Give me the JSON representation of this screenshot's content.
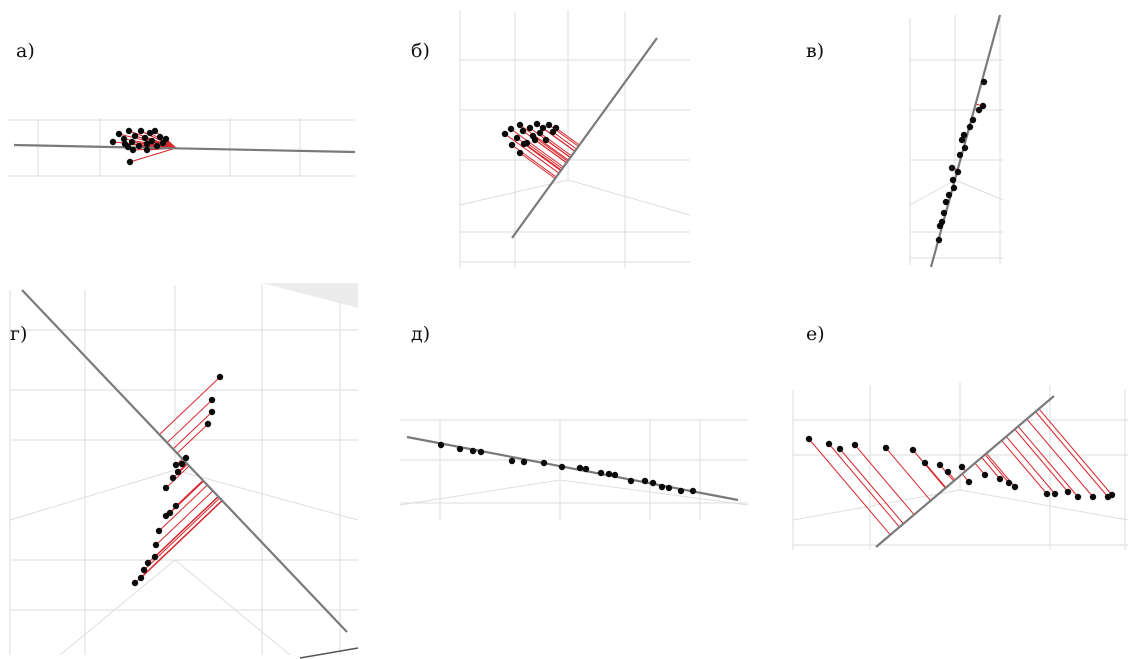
{
  "panels": [
    {
      "id": "a",
      "label": "а)"
    },
    {
      "id": "b",
      "label": "б)"
    },
    {
      "id": "v",
      "label": "в)"
    },
    {
      "id": "g",
      "label": "г)"
    },
    {
      "id": "d",
      "label": "д)"
    },
    {
      "id": "e",
      "label": "е)"
    }
  ],
  "colors": {
    "projection_line": "#d9262c",
    "principal_axis": "#7a7a7a",
    "data_point": "#0a0a0a",
    "grid": "#dedede"
  }
}
